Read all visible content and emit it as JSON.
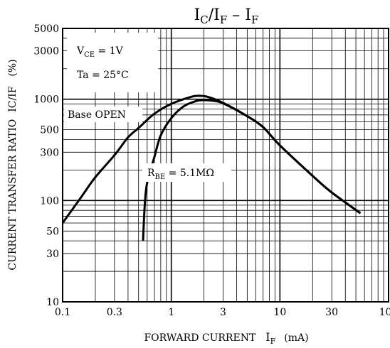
{
  "chart_data": {
    "type": "line",
    "title": "IC/IF - IF",
    "title_parts": {
      "main": "I",
      "sub1": "C",
      "slash": "/I",
      "sub2": "F",
      "dash": " – I",
      "sub3": "F"
    },
    "xlabel": "FORWARD CURRENT",
    "xlabel_symbol": {
      "main": "I",
      "sub": "F"
    },
    "xlabel_unit": "(mA)",
    "ylabel": "CURRENT TRANSFER RATIO",
    "ylabel_symbol": "IC/IF",
    "ylabel_unit": "(%)",
    "x_scale": "log",
    "y_scale": "log",
    "xlim": [
      0.1,
      100
    ],
    "ylim": [
      10,
      5000
    ],
    "x_ticks": [
      {
        "value": 0.1,
        "label": "0.1"
      },
      {
        "value": 0.3,
        "label": "0.3"
      },
      {
        "value": 1,
        "label": "1"
      },
      {
        "value": 3,
        "label": "3"
      },
      {
        "value": 10,
        "label": "10"
      },
      {
        "value": 30,
        "label": "30"
      },
      {
        "value": 100,
        "label": "100"
      }
    ],
    "y_ticks": [
      {
        "value": 10,
        "label": "10"
      },
      {
        "value": 30,
        "label": "30"
      },
      {
        "value": 50,
        "label": "50"
      },
      {
        "value": 100,
        "label": "100"
      },
      {
        "value": 300,
        "label": "300"
      },
      {
        "value": 500,
        "label": "500"
      },
      {
        "value": 1000,
        "label": "1000"
      },
      {
        "value": 3000,
        "label": "3000"
      },
      {
        "value": 5000,
        "label": "5000"
      }
    ],
    "grid": true,
    "conditions": {
      "vce": {
        "main": "V",
        "sub": "CE",
        "rest": " = 1V"
      },
      "ta": "Ta = 25°C"
    },
    "series": [
      {
        "name": "Base OPEN",
        "points": [
          [
            0.1,
            60
          ],
          [
            0.15,
            110
          ],
          [
            0.2,
            170
          ],
          [
            0.3,
            280
          ],
          [
            0.4,
            420
          ],
          [
            0.5,
            520
          ],
          [
            0.7,
            720
          ],
          [
            1.0,
            900
          ],
          [
            1.5,
            1050
          ],
          [
            1.8,
            1080
          ],
          [
            2.2,
            1050
          ],
          [
            3.0,
            920
          ],
          [
            5.0,
            680
          ],
          [
            7.0,
            530
          ],
          [
            10.0,
            350
          ],
          [
            20.0,
            175
          ],
          [
            30.0,
            120
          ],
          [
            55.0,
            75
          ]
        ]
      },
      {
        "name": "RBE = 5.1MΩ",
        "name_parts": {
          "main": "R",
          "sub": "BE",
          "rest": " = 5.1MΩ"
        },
        "points": [
          [
            0.55,
            40
          ],
          [
            0.57,
            90
          ],
          [
            0.6,
            150
          ],
          [
            0.7,
            270
          ],
          [
            0.8,
            440
          ],
          [
            1.0,
            650
          ],
          [
            1.3,
            850
          ],
          [
            1.7,
            960
          ],
          [
            2.0,
            980
          ],
          [
            2.5,
            960
          ],
          [
            3.0,
            910
          ],
          [
            5.0,
            680
          ],
          [
            7.0,
            530
          ],
          [
            10.0,
            350
          ],
          [
            20.0,
            175
          ],
          [
            30.0,
            120
          ],
          [
            55.0,
            75
          ]
        ]
      }
    ],
    "colors": {
      "line": "#000000",
      "grid": "#000000",
      "background": "#ffffff"
    }
  }
}
